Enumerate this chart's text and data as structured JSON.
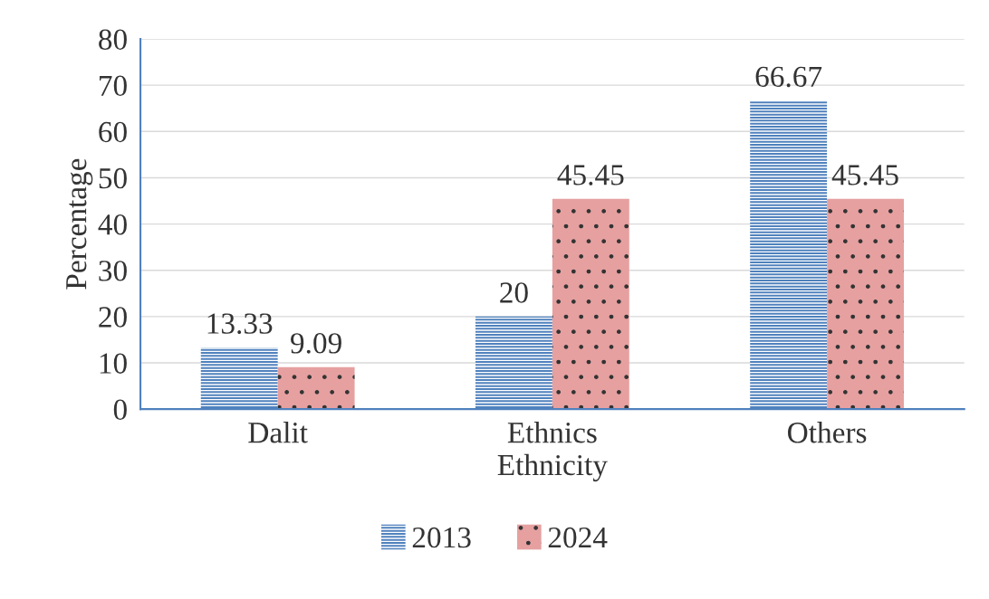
{
  "chart_data": {
    "type": "bar",
    "xlabel": "Ethnicity",
    "ylabel": "Percentage",
    "categories": [
      "Dalit",
      "Ethnics",
      "Others"
    ],
    "series": [
      {
        "name": "2013",
        "color": "#4f81bd",
        "values": [
          13.33,
          20,
          66.67
        ]
      },
      {
        "name": "2024",
        "color": "#e6a0a0",
        "values": [
          9.09,
          45.45,
          45.45
        ]
      }
    ],
    "ylim": [
      0,
      80
    ],
    "yticks": [
      0,
      10,
      20,
      30,
      40,
      50,
      60,
      70,
      80
    ],
    "grid": "y",
    "legend": "bottom",
    "data_labels": true
  }
}
